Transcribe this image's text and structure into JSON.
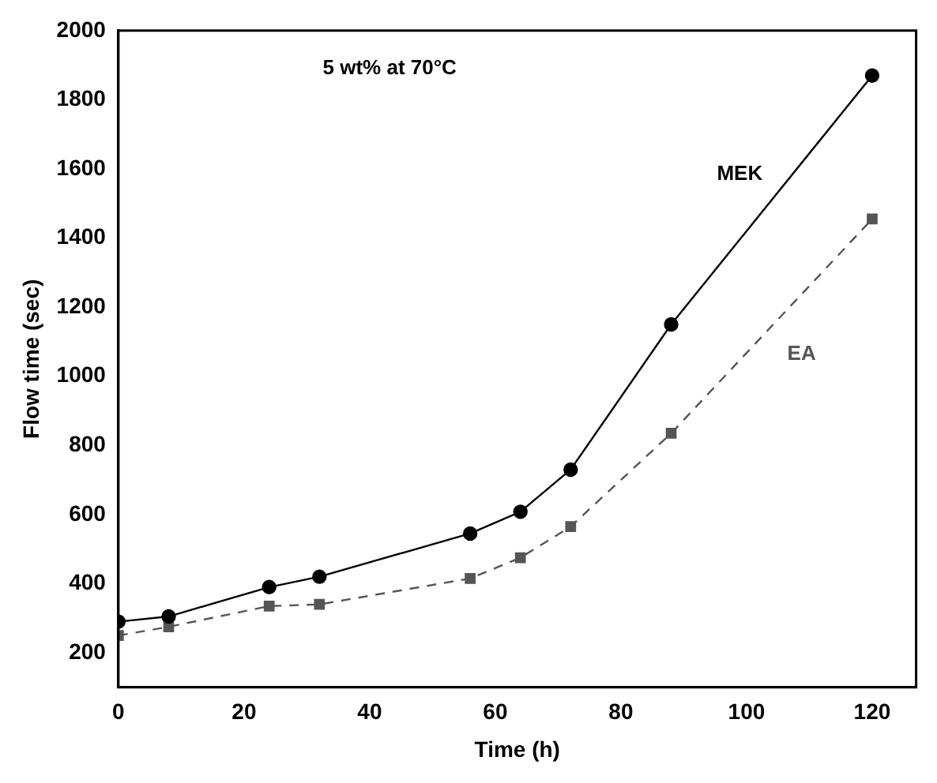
{
  "chart_data": {
    "type": "line",
    "xlabel": "Time (h)",
    "ylabel": "Flow time (sec)",
    "xlim": [
      0,
      127
    ],
    "xticks": [
      0,
      20,
      40,
      60,
      80,
      100,
      120
    ],
    "ylim": [
      100,
      2000
    ],
    "yticks": [
      200,
      400,
      600,
      800,
      1000,
      1200,
      1400,
      1600,
      1800,
      2000
    ],
    "grid": false,
    "legend": false,
    "annotations": [
      "5 wt% at 70°C"
    ],
    "series": [
      {
        "name": "MEK",
        "color": "#000000",
        "marker": "circle",
        "line_style": "solid",
        "x": [
          0,
          8,
          24,
          32,
          56,
          64,
          72,
          88,
          120
        ],
        "values": [
          290,
          305,
          390,
          420,
          545,
          608,
          730,
          1150,
          1870
        ]
      },
      {
        "name": "EA",
        "color": "#555555",
        "marker": "square",
        "line_style": "dashed",
        "x": [
          0,
          8,
          24,
          32,
          56,
          64,
          72,
          88,
          120
        ],
        "values": [
          250,
          275,
          335,
          340,
          415,
          475,
          565,
          835,
          1455
        ]
      }
    ]
  }
}
